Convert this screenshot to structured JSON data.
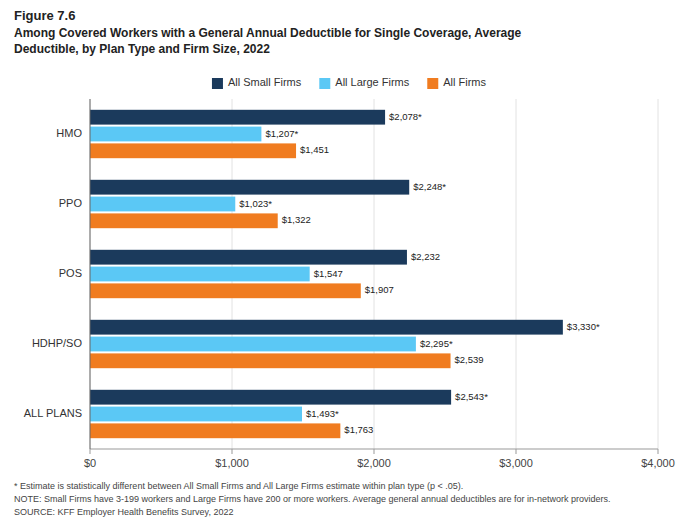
{
  "chart_data": {
    "type": "bar",
    "orientation": "horizontal",
    "title": "Figure 7.6",
    "subtitle": [
      "Among Covered Workers with a General Annual Deductible for Single Coverage, Average",
      "Deductible, by Plan Type and Firm Size, 2022"
    ],
    "categories": [
      "HMO",
      "PPO",
      "POS",
      "HDHP/SO",
      "ALL PLANS"
    ],
    "series": [
      {
        "name": "All Small Firms",
        "color": "#1b3a5c",
        "values": [
          2078,
          2248,
          2232,
          3330,
          2543
        ],
        "value_labels": [
          "$2,078*",
          "$2,248*",
          "$2,232",
          "$3,330*",
          "$2,543*"
        ]
      },
      {
        "name": "All Large Firms",
        "color": "#5bc8f5",
        "values": [
          1207,
          1023,
          1547,
          2295,
          1493
        ],
        "value_labels": [
          "$1,207*",
          "$1,023*",
          "$1,547",
          "$2,295*",
          "$1,493*"
        ]
      },
      {
        "name": "All Firms",
        "color": "#f07c20",
        "values": [
          1451,
          1322,
          1907,
          2539,
          1763
        ],
        "value_labels": [
          "$1,451",
          "$1,322",
          "$1,907",
          "$2,539",
          "$1,763"
        ]
      }
    ],
    "xlim": [
      0,
      4000
    ],
    "xticks": [
      {
        "value": 0,
        "label": "$0"
      },
      {
        "value": 1000,
        "label": "$1,000"
      },
      {
        "value": 2000,
        "label": "$2,000"
      },
      {
        "value": 3000,
        "label": "$3,000"
      },
      {
        "value": 4000,
        "label": "$4,000"
      }
    ],
    "grid": true,
    "legend": "top",
    "data_labels": true,
    "annotations": [
      "* Estimate is statistically different between All Small Firms and All Large Firms estimate within plan type (p < .05).",
      "NOTE: Small Firms have 3-199 workers and Large Firms have 200 or more workers. Average general annual deductibles are for in-network providers.",
      "SOURCE: KFF Employer Health Benefits Survey, 2022"
    ]
  }
}
